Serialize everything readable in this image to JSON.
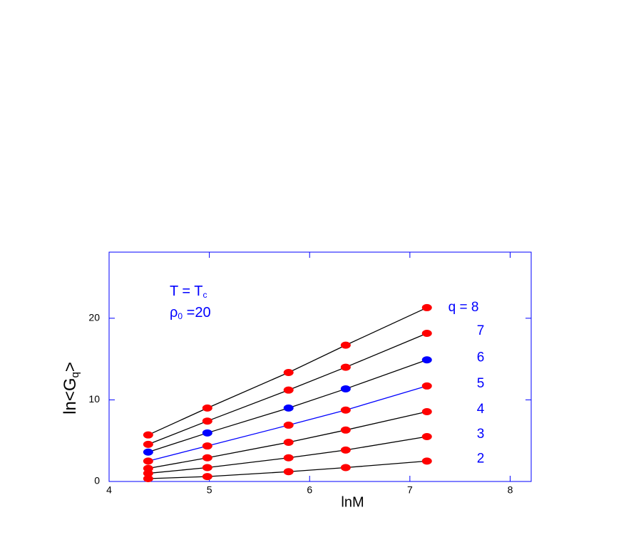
{
  "chart_data": {
    "type": "line",
    "x_label": "lnM",
    "y_label": [
      "ln<G",
      "q",
      ">"
    ],
    "annotations": [
      [
        "T = T",
        "c"
      ],
      [
        "ρ",
        "0",
        " =20"
      ]
    ],
    "x": [
      4.39,
      4.98,
      5.79,
      6.36,
      7.17
    ],
    "xlim": [
      4,
      8.21
    ],
    "ylim": [
      0,
      28.1
    ],
    "xticks": [
      4,
      5,
      6,
      7,
      8
    ],
    "yticks": [
      0,
      10,
      20
    ],
    "axis_color": "#0000ff",
    "series": [
      {
        "name": "2",
        "color": "#000000",
        "marker_color": "#ff0000",
        "values": [
          0.35,
          0.6,
          1.2,
          1.7,
          2.5
        ]
      },
      {
        "name": "3",
        "color": "#000000",
        "marker_color": "#ff0000",
        "values": [
          1.0,
          1.7,
          2.9,
          3.85,
          5.5
        ]
      },
      {
        "name": "4",
        "color": "#000000",
        "marker_color": "#ff0000",
        "values": [
          1.6,
          2.9,
          4.8,
          6.3,
          8.55
        ]
      },
      {
        "name": "5",
        "color": "#0000ff",
        "marker_color": "#ff0000",
        "values": [
          2.5,
          4.35,
          6.9,
          8.75,
          11.7
        ]
      },
      {
        "name": "6",
        "color": "#000000",
        "marker_color": "#0000ff",
        "values": [
          3.6,
          5.95,
          9.0,
          11.35,
          14.9
        ]
      },
      {
        "name": "7",
        "color": "#000000",
        "marker_color": "#ff0000",
        "values": [
          4.55,
          7.4,
          11.2,
          14.0,
          18.15
        ]
      },
      {
        "name": "q = 8",
        "color": "#000000",
        "marker_color": "#ff0000",
        "values": [
          5.7,
          9.0,
          13.35,
          16.7,
          21.3
        ]
      }
    ]
  }
}
